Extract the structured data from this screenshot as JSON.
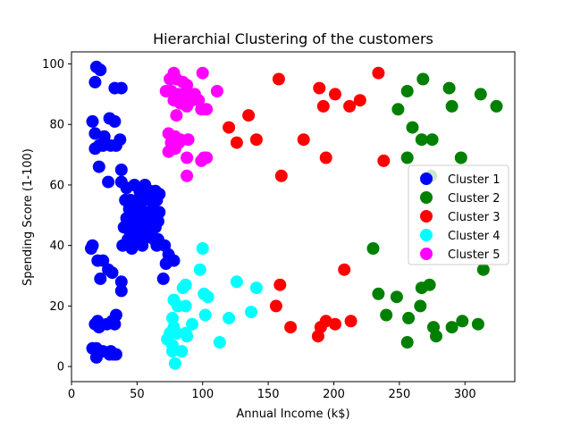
{
  "chart_data": {
    "type": "scatter",
    "title": "Hierarchial Clustering of the customers",
    "xlabel": "Annual Income (k$)",
    "ylabel": "Spending Score (1-100)",
    "xlim": [
      0,
      338
    ],
    "ylim": [
      -5,
      104
    ],
    "xticks": [
      0,
      50,
      100,
      150,
      200,
      250,
      300
    ],
    "yticks": [
      0,
      20,
      40,
      60,
      80,
      100
    ],
    "grid": false,
    "legend_position": "center-right",
    "series": [
      {
        "name": "Cluster 1",
        "color": "#0000ff",
        "points": [
          [
            19,
            99
          ],
          [
            22,
            98
          ],
          [
            18,
            94
          ],
          [
            33,
            92
          ],
          [
            38,
            92
          ],
          [
            16,
            81
          ],
          [
            18,
            77
          ],
          [
            25,
            76
          ],
          [
            29,
            82
          ],
          [
            33,
            81
          ],
          [
            37,
            75
          ],
          [
            18,
            72
          ],
          [
            21,
            73
          ],
          [
            24,
            73
          ],
          [
            30,
            73
          ],
          [
            34,
            73
          ],
          [
            21,
            66
          ],
          [
            38,
            65
          ],
          [
            28,
            61
          ],
          [
            38,
            61
          ],
          [
            42,
            59
          ],
          [
            48,
            60
          ],
          [
            52,
            58
          ],
          [
            56,
            60
          ],
          [
            60,
            58
          ],
          [
            64,
            58
          ],
          [
            67,
            57
          ],
          [
            41,
            55
          ],
          [
            45,
            55
          ],
          [
            50,
            55
          ],
          [
            55,
            55
          ],
          [
            60,
            55
          ],
          [
            65,
            55
          ],
          [
            44,
            52
          ],
          [
            48,
            51
          ],
          [
            52,
            52
          ],
          [
            57,
            51
          ],
          [
            62,
            52
          ],
          [
            67,
            51
          ],
          [
            42,
            49
          ],
          [
            46,
            48
          ],
          [
            50,
            49
          ],
          [
            54,
            48
          ],
          [
            58,
            49
          ],
          [
            62,
            48
          ],
          [
            66,
            48
          ],
          [
            40,
            46
          ],
          [
            44,
            45
          ],
          [
            48,
            46
          ],
          [
            52,
            45
          ],
          [
            56,
            46
          ],
          [
            60,
            45
          ],
          [
            64,
            46
          ],
          [
            43,
            42
          ],
          [
            47,
            42
          ],
          [
            51,
            43
          ],
          [
            55,
            42
          ],
          [
            59,
            43
          ],
          [
            63,
            42
          ],
          [
            66,
            42
          ],
          [
            16,
            40
          ],
          [
            15,
            39
          ],
          [
            39,
            40
          ],
          [
            46,
            39
          ],
          [
            54,
            40
          ],
          [
            65,
            40
          ],
          [
            71,
            40
          ],
          [
            74,
            37
          ],
          [
            72,
            34
          ],
          [
            78,
            35
          ],
          [
            20,
            35
          ],
          [
            24,
            35
          ],
          [
            28,
            32
          ],
          [
            31,
            31
          ],
          [
            38,
            28
          ],
          [
            70,
            29
          ],
          [
            22,
            29
          ],
          [
            38,
            25
          ],
          [
            34,
            17
          ],
          [
            20,
            15
          ],
          [
            18,
            14
          ],
          [
            21,
            13
          ],
          [
            27,
            14
          ],
          [
            31,
            15
          ],
          [
            33,
            14
          ],
          [
            16,
            6
          ],
          [
            19,
            6
          ],
          [
            24,
            5
          ],
          [
            30,
            5
          ],
          [
            32,
            4
          ],
          [
            34,
            4
          ],
          [
            19,
            3
          ],
          [
            29,
            4
          ]
        ]
      },
      {
        "name": "Cluster 2",
        "color": "#008000",
        "points": [
          [
            268,
            95
          ],
          [
            288,
            92
          ],
          [
            256,
            91
          ],
          [
            312,
            90
          ],
          [
            290,
            86
          ],
          [
            324,
            86
          ],
          [
            249,
            85
          ],
          [
            260,
            79
          ],
          [
            267,
            75
          ],
          [
            275,
            75
          ],
          [
            297,
            69
          ],
          [
            256,
            69
          ],
          [
            274,
            63
          ],
          [
            230,
            39
          ],
          [
            314,
            32
          ],
          [
            273,
            27
          ],
          [
            267,
            26
          ],
          [
            234,
            24
          ],
          [
            248,
            23
          ],
          [
            266,
            20
          ],
          [
            240,
            17
          ],
          [
            257,
            16
          ],
          [
            298,
            15
          ],
          [
            310,
            14
          ],
          [
            276,
            13
          ],
          [
            290,
            13
          ],
          [
            278,
            10
          ],
          [
            256,
            8
          ]
        ]
      },
      {
        "name": "Cluster 3",
        "color": "#ff0000",
        "points": [
          [
            234,
            97
          ],
          [
            158,
            95
          ],
          [
            189,
            92
          ],
          [
            201,
            90
          ],
          [
            220,
            88
          ],
          [
            192,
            86
          ],
          [
            212,
            86
          ],
          [
            135,
            83
          ],
          [
            120,
            79
          ],
          [
            177,
            75
          ],
          [
            126,
            74
          ],
          [
            141,
            75
          ],
          [
            194,
            69
          ],
          [
            238,
            68
          ],
          [
            160,
            63
          ],
          [
            208,
            32
          ],
          [
            159,
            27
          ],
          [
            156,
            20
          ],
          [
            194,
            15
          ],
          [
            213,
            15
          ],
          [
            201,
            14
          ],
          [
            190,
            13
          ],
          [
            167,
            13
          ],
          [
            188,
            10
          ]
        ]
      },
      {
        "name": "Cluster 4",
        "color": "#00ffff",
        "points": [
          [
            100,
            39
          ],
          [
            98,
            32
          ],
          [
            126,
            28
          ],
          [
            87,
            27
          ],
          [
            85,
            26
          ],
          [
            141,
            26
          ],
          [
            101,
            24
          ],
          [
            104,
            23
          ],
          [
            78,
            22
          ],
          [
            81,
            20
          ],
          [
            87,
            20
          ],
          [
            120,
            16
          ],
          [
            102,
            17
          ],
          [
            137,
            18
          ],
          [
            77,
            16
          ],
          [
            78,
            13
          ],
          [
            92,
            14
          ],
          [
            75,
            11
          ],
          [
            80,
            11
          ],
          [
            87,
            11
          ],
          [
            73,
            9
          ],
          [
            88,
            10
          ],
          [
            77,
            7
          ],
          [
            113,
            8
          ],
          [
            77,
            5
          ],
          [
            84,
            5
          ],
          [
            79,
            1
          ]
        ]
      },
      {
        "name": "Cluster 5",
        "color": "#ff00ff",
        "points": [
          [
            78,
            97
          ],
          [
            100,
            97
          ],
          [
            75,
            95
          ],
          [
            80,
            95
          ],
          [
            85,
            94
          ],
          [
            88,
            93
          ],
          [
            72,
            91
          ],
          [
            76,
            91
          ],
          [
            81,
            90
          ],
          [
            85,
            90
          ],
          [
            89,
            90
          ],
          [
            94,
            90
          ],
          [
            111,
            91
          ],
          [
            78,
            88
          ],
          [
            80,
            88
          ],
          [
            83,
            87
          ],
          [
            88,
            86
          ],
          [
            92,
            88
          ],
          [
            97,
            88
          ],
          [
            103,
            85
          ],
          [
            99,
            85
          ],
          [
            80,
            83
          ],
          [
            74,
            77
          ],
          [
            79,
            76
          ],
          [
            83,
            75
          ],
          [
            89,
            75
          ],
          [
            76,
            74
          ],
          [
            82,
            74
          ],
          [
            74,
            71
          ],
          [
            79,
            72
          ],
          [
            101,
            69
          ],
          [
            88,
            69
          ],
          [
            103,
            69
          ],
          [
            99,
            68
          ],
          [
            88,
            63
          ]
        ]
      }
    ]
  }
}
